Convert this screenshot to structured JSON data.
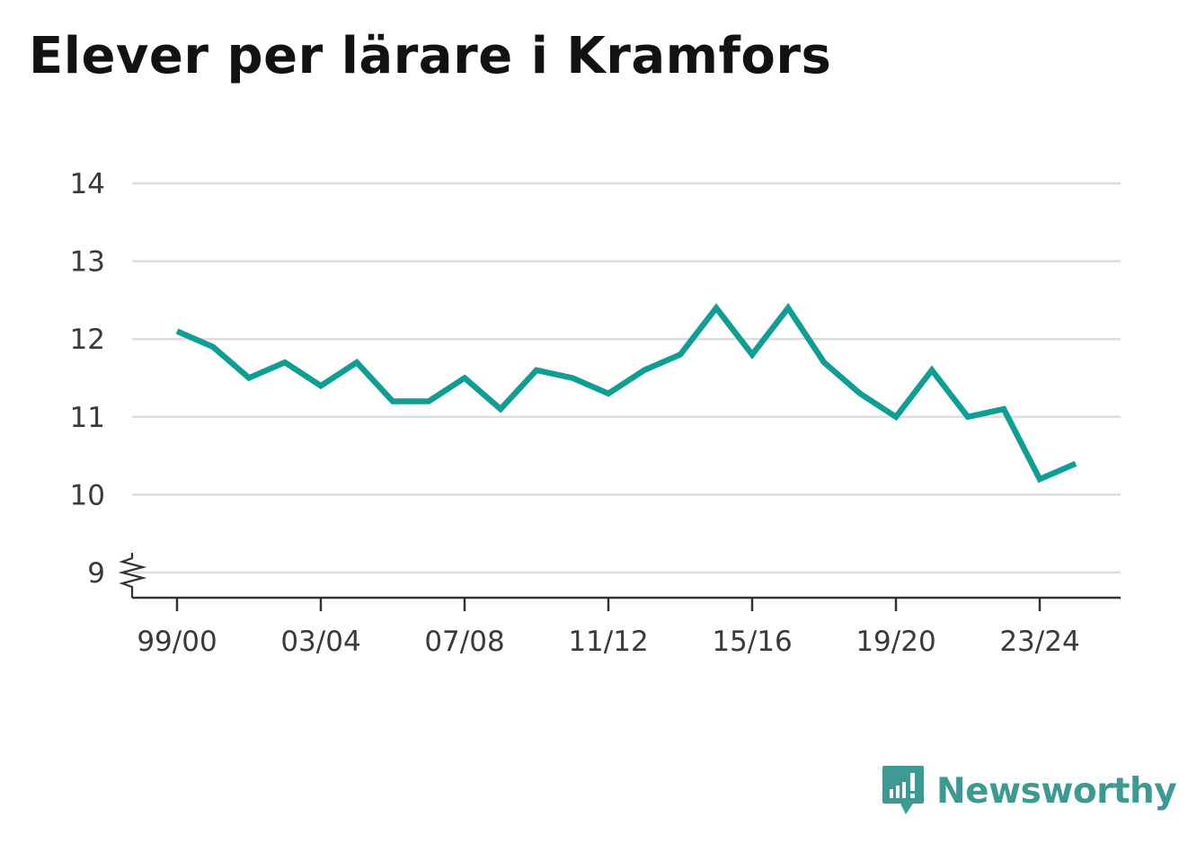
{
  "colors": {
    "line": "#0f9e94",
    "grid": "#dddddd",
    "axis": "#333333",
    "brand": "#3d9a92",
    "title": "#121212"
  },
  "brand": {
    "name": "Newsworthy",
    "icon": "newsworthy-logo-icon"
  },
  "chart_data": {
    "type": "line",
    "title": "Elever per lärare i Kramfors",
    "xlabel": "",
    "ylabel": "",
    "ylim": [
      9,
      14
    ],
    "y_axis_break": true,
    "grid": true,
    "yticks": [
      9,
      10,
      11,
      12,
      13,
      14
    ],
    "xtick_labels": [
      "99/00",
      "03/04",
      "07/08",
      "11/12",
      "15/16",
      "19/20",
      "23/24"
    ],
    "x": [
      "99/00",
      "00/01",
      "01/02",
      "02/03",
      "03/04",
      "04/05",
      "05/06",
      "06/07",
      "07/08",
      "08/09",
      "09/10",
      "10/11",
      "11/12",
      "12/13",
      "13/14",
      "14/15",
      "15/16",
      "16/17",
      "17/18",
      "18/19",
      "19/20",
      "20/21",
      "21/22",
      "22/23",
      "23/24",
      "24/25"
    ],
    "series": [
      {
        "values": [
          12.1,
          11.9,
          11.5,
          11.7,
          11.4,
          11.7,
          11.2,
          11.2,
          11.5,
          11.1,
          11.6,
          11.5,
          11.3,
          11.6,
          11.8,
          12.4,
          11.8,
          12.4,
          11.7,
          11.3,
          11.0,
          11.6,
          11.0,
          11.1,
          10.2,
          10.4
        ]
      }
    ]
  }
}
